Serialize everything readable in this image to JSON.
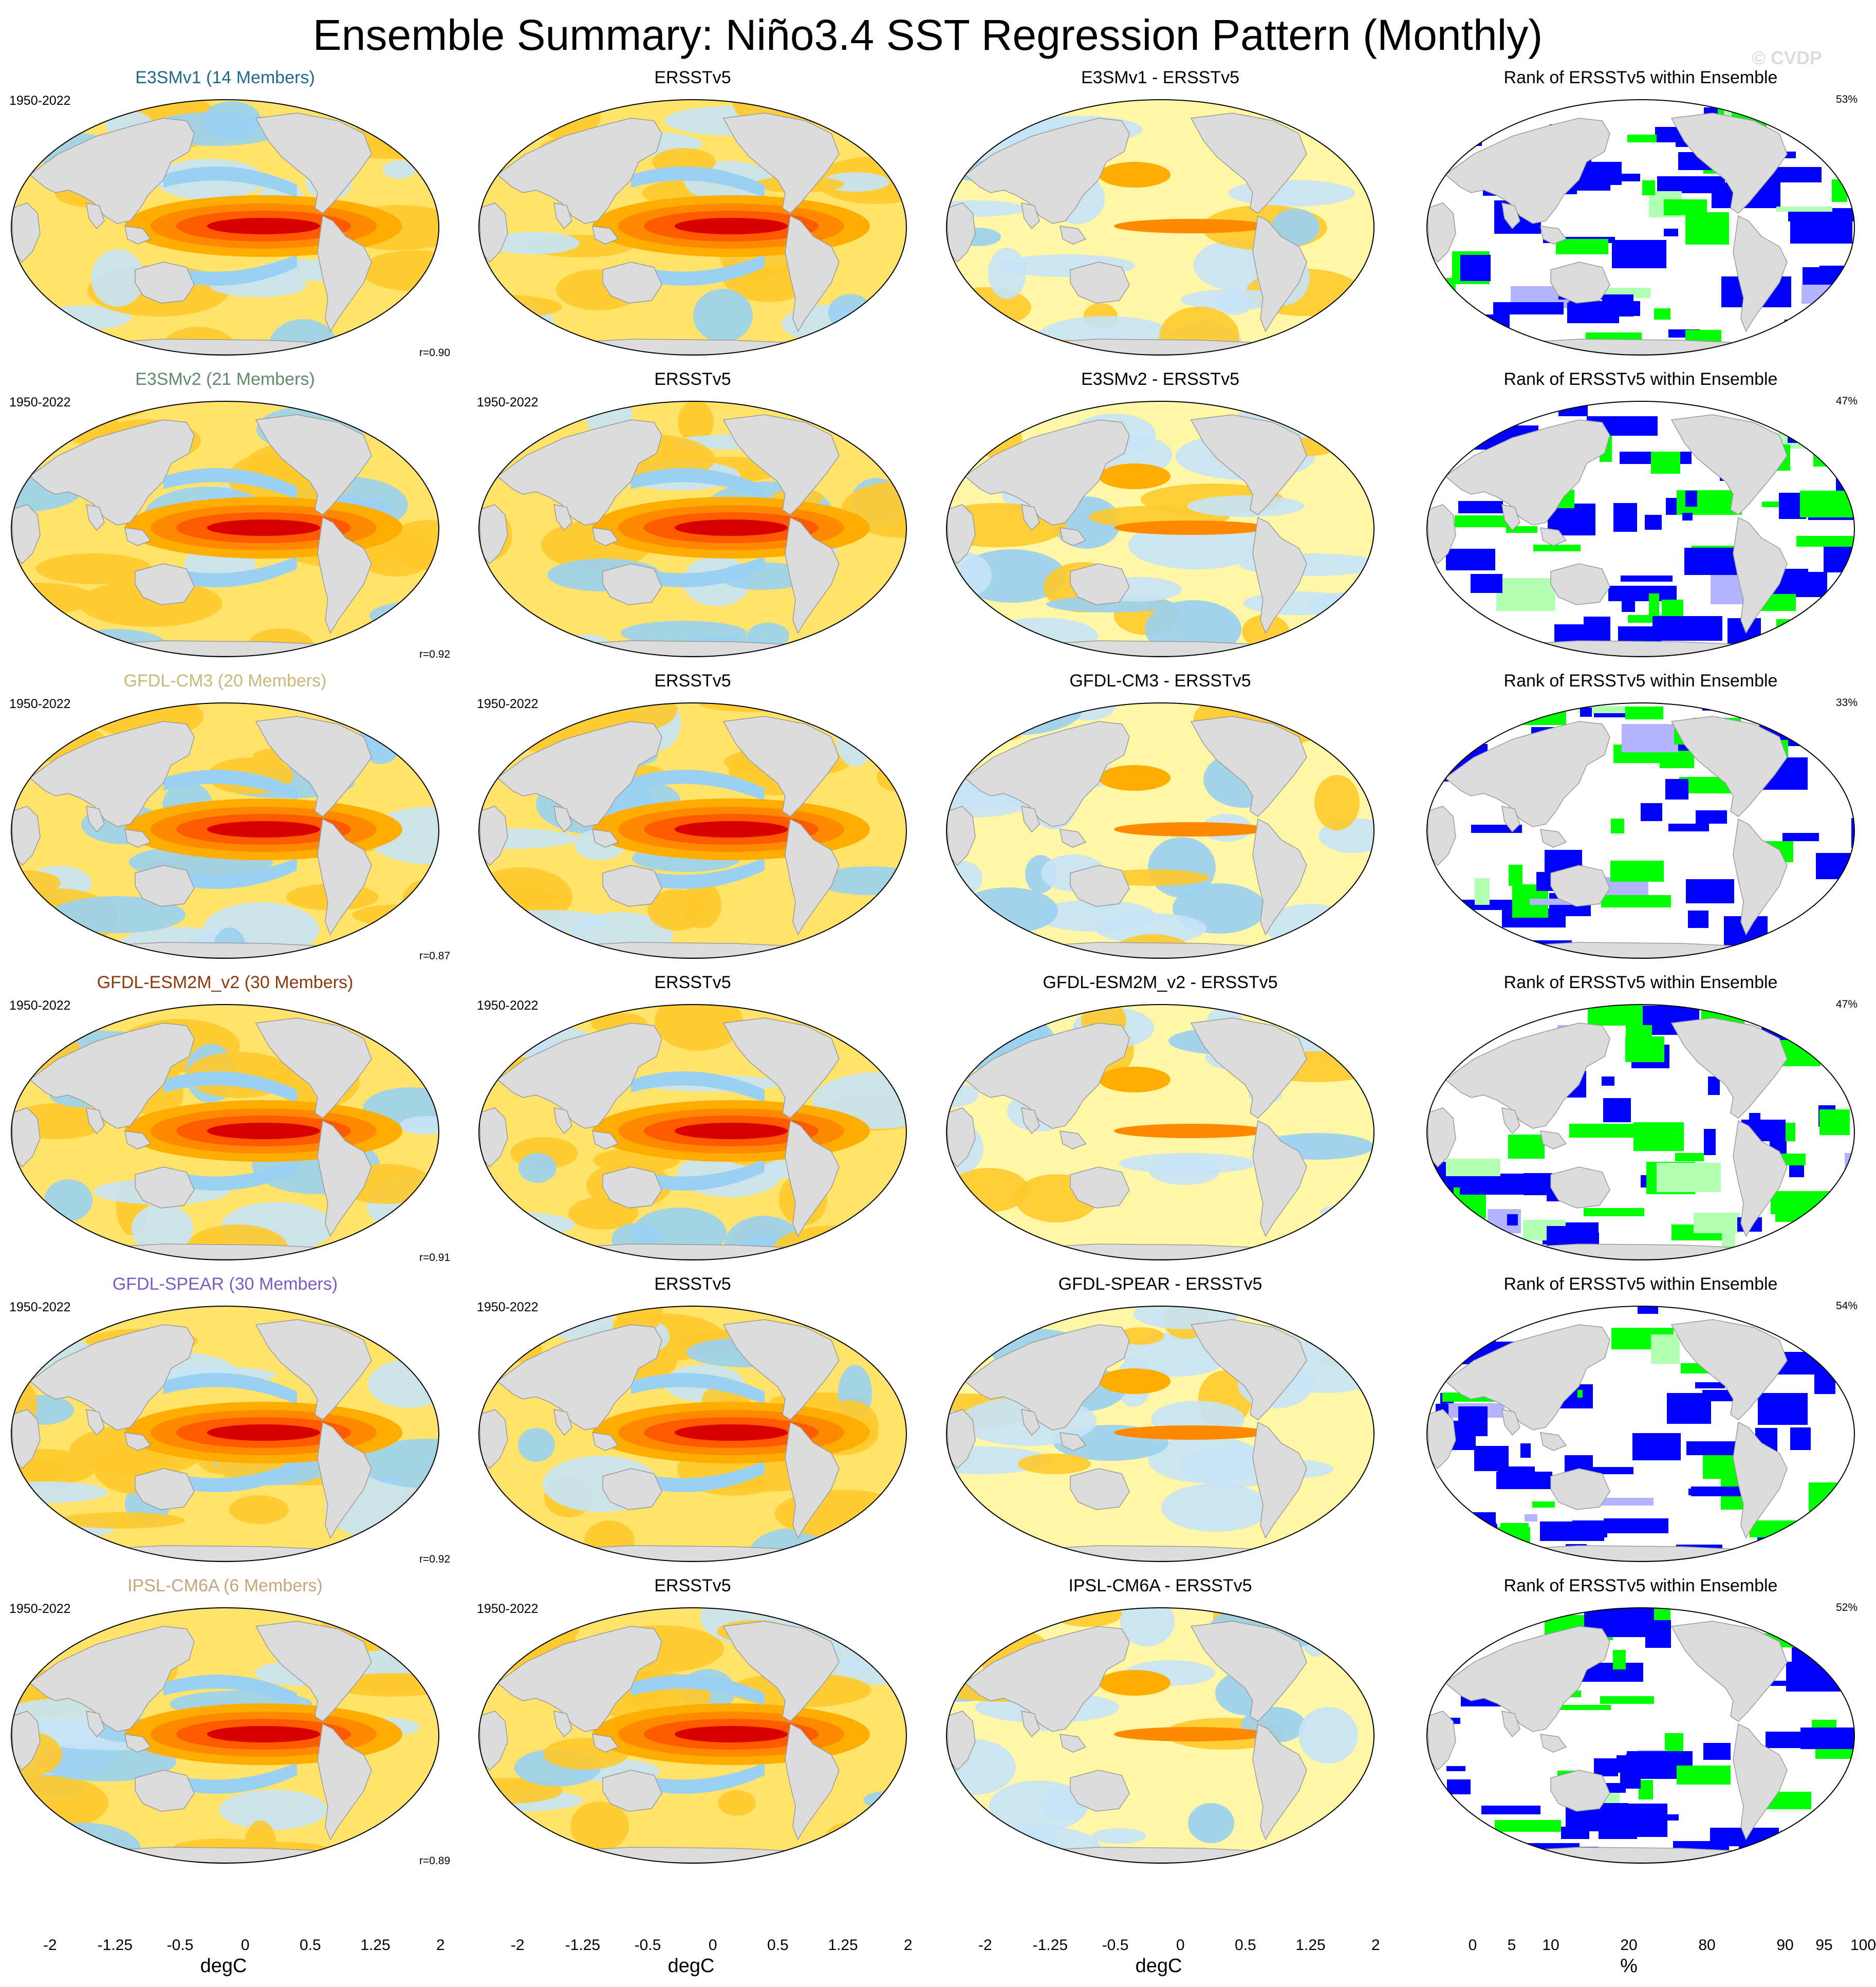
{
  "title": "Ensemble Summary: Niño3.4 SST Regression Pattern (Monthly)",
  "watermark": "© CVDP",
  "period": "1950-2022",
  "rank_title": "Rank of ERSSTv5 within Ensemble",
  "obs_title": "ERSSTv5",
  "colors": {
    "land": "#dcdcdc",
    "coast": "#9a9a9a",
    "sst_levels": [
      "#7d2ae8",
      "#4b1fe6",
      "#2d3ee8",
      "#4a6fe3",
      "#1e9bef",
      "#5bb8f0",
      "#9ad0f2",
      "#c7e3f6",
      "#fff6a6",
      "#ffe36b",
      "#ffca2e",
      "#ffad00",
      "#ff8a00",
      "#ff5a00",
      "#ff2a00",
      "#d90000",
      "#c41a2a",
      "#f2a3a3"
    ],
    "rank_levels": [
      "#0000ff",
      "#6d6dff",
      "#b3b3ff",
      "#e0e0ff",
      "#ffffff",
      "#ffffff",
      "#e6ffe6",
      "#b3ffb3",
      "#80ff80",
      "#00ff00"
    ]
  },
  "rows": [
    {
      "model": "E3SMv1 (14 Members)",
      "model_color": "#1f6a8a",
      "diff": "E3SMv1 - ERSSTv5",
      "r": "r=0.90",
      "pct": "53%"
    },
    {
      "model": "E3SMv2 (21 Members)",
      "model_color": "#5f8a6b",
      "diff": "E3SMv2 - ERSSTv5",
      "r": "r=0.92",
      "pct": "47%"
    },
    {
      "model": "GFDL-CM3 (20 Members)",
      "model_color": "#c9b878",
      "diff": "GFDL-CM3 - ERSSTv5",
      "r": "r=0.87",
      "pct": "33%"
    },
    {
      "model": "GFDL-ESM2M_v2 (30 Members)",
      "model_color": "#8b3a0e",
      "diff": "GFDL-ESM2M_v2 - ERSSTv5",
      "r": "r=0.91",
      "pct": "47%"
    },
    {
      "model": "GFDL-SPEAR (30 Members)",
      "model_color": "#7b5cc4",
      "diff": "GFDL-SPEAR - ERSSTv5",
      "r": "r=0.92",
      "pct": "54%"
    },
    {
      "model": "IPSL-CM6A (6 Members)",
      "model_color": "#c9a47a",
      "diff": "IPSL-CM6A - ERSSTv5",
      "r": "r=0.89",
      "pct": "52%"
    }
  ],
  "colorbars": {
    "sst": {
      "labels": [
        "-2",
        "-1.25",
        "-0.5",
        "0",
        "0.5",
        "1.25",
        "2"
      ],
      "label_positions": [
        1,
        4,
        7,
        10,
        13,
        16,
        19
      ],
      "unit": "degC"
    },
    "rank": {
      "labels": [
        "0",
        "5",
        "10",
        "20",
        "80",
        "90",
        "95",
        "100"
      ],
      "label_positions": [
        1,
        2,
        3,
        5,
        7,
        9,
        10,
        11
      ],
      "unit": "%"
    }
  }
}
